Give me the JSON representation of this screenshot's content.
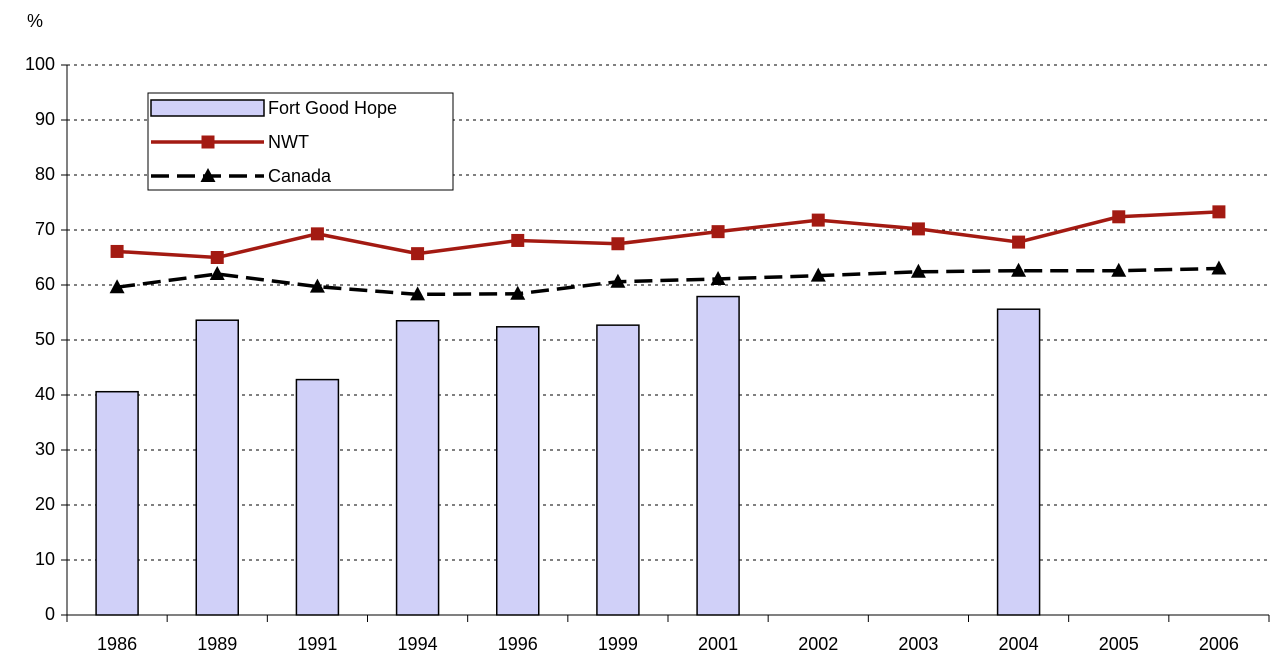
{
  "chart_data": {
    "type": "combo",
    "y_label": "%",
    "categories": [
      "1986",
      "1989",
      "1991",
      "1994",
      "1996",
      "1999",
      "2001",
      "2002",
      "2003",
      "2004",
      "2005",
      "2006"
    ],
    "series": [
      {
        "name": "Fort Good Hope",
        "type": "bar",
        "color": "#d0d0f8",
        "values": [
          40.6,
          53.6,
          42.8,
          53.5,
          52.4,
          52.7,
          57.9,
          null,
          null,
          55.6,
          null,
          null
        ]
      },
      {
        "name": "NWT",
        "type": "line",
        "marker": "square",
        "dashed": false,
        "color": "#a31a12",
        "values": [
          66.1,
          65.0,
          69.3,
          65.7,
          68.1,
          67.5,
          69.7,
          71.8,
          70.2,
          67.8,
          72.4,
          73.3
        ]
      },
      {
        "name": "Canada",
        "type": "line",
        "marker": "triangle",
        "dashed": true,
        "color": "#000000",
        "values": [
          59.6,
          62.0,
          59.7,
          58.3,
          58.4,
          60.6,
          61.1,
          61.7,
          62.4,
          62.6,
          62.6,
          63.0
        ]
      }
    ],
    "ylim": [
      0,
      100
    ],
    "yticks": [
      0,
      10,
      20,
      30,
      40,
      50,
      60,
      70,
      80,
      90,
      100
    ],
    "grid": true,
    "legend_position": "upper left"
  }
}
